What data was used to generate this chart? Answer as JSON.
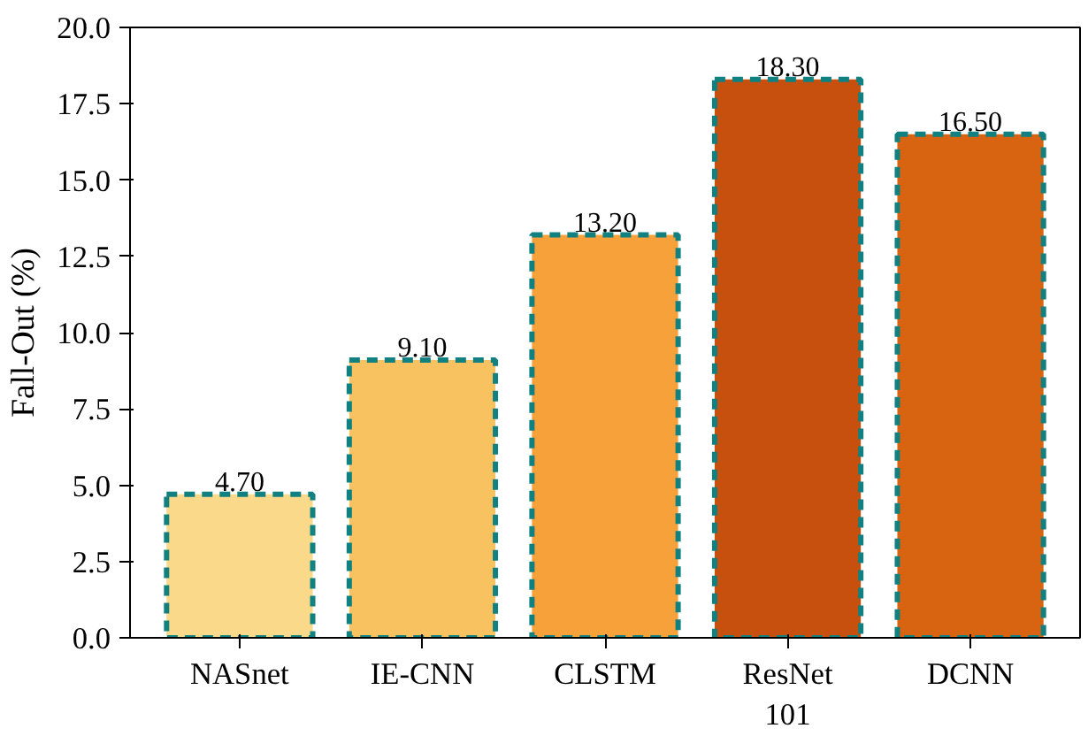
{
  "chart_data": {
    "type": "bar",
    "ylabel": "Fall-Out (%)",
    "categories": [
      "NASnet",
      "IE-CNN",
      "CLSTM",
      "ResNet\n101",
      "DCNN"
    ],
    "values": [
      4.7,
      9.1,
      13.2,
      18.3,
      16.5
    ],
    "colors": [
      "#fbd98a",
      "#f9c261",
      "#f6a13a",
      "#c8500f",
      "#d86412"
    ],
    "value_labels": [
      "4.70",
      "9.10",
      "13.20",
      "18.30",
      "16.50"
    ],
    "ylim": [
      0,
      20
    ],
    "yticks": [
      {
        "value": 0,
        "label": "0.0"
      },
      2.5,
      {
        "value": 5,
        "label": "5.0"
      },
      7.5,
      {
        "value": 10,
        "label": "10.0"
      },
      12.5,
      {
        "value": 15,
        "label": "15.0"
      },
      17.5,
      {
        "value": 20,
        "label": "20.0"
      }
    ],
    "grid": false
  }
}
